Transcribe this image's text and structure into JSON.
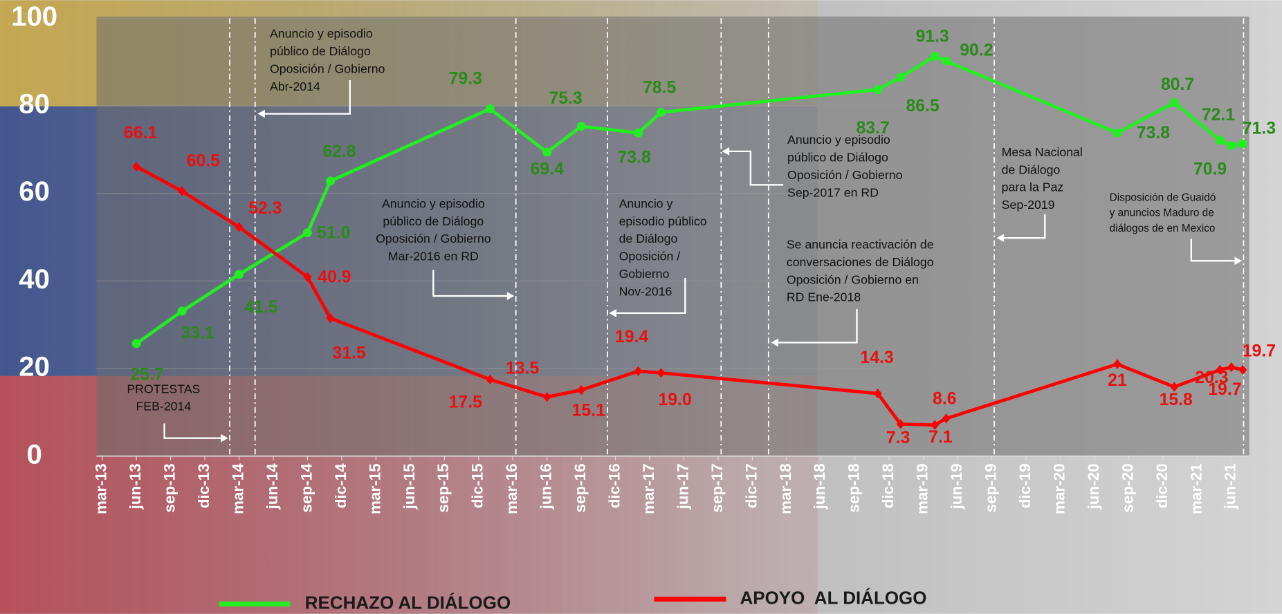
{
  "chart_data": {
    "type": "line",
    "xlim": [
      "2013-03",
      "2021-07"
    ],
    "xticks": [
      {
        "value": "2013-03",
        "label": "mar-13"
      },
      {
        "value": "2013-06",
        "label": "jun-13"
      },
      {
        "value": "2013-09",
        "label": "sep-13"
      },
      {
        "value": "2013-12",
        "label": "dic-13"
      },
      {
        "value": "2014-03",
        "label": "mar-14"
      },
      {
        "value": "2014-06",
        "label": "jun-14"
      },
      {
        "value": "2014-09",
        "label": "sep-14"
      },
      {
        "value": "2014-12",
        "label": "dic-14"
      },
      {
        "value": "2015-03",
        "label": "mar-15"
      },
      {
        "value": "2015-06",
        "label": "jun-15"
      },
      {
        "value": "2015-09",
        "label": "sep-15"
      },
      {
        "value": "2015-12",
        "label": "dic-15"
      },
      {
        "value": "2016-03",
        "label": "mar-16"
      },
      {
        "value": "2016-06",
        "label": "jun-16"
      },
      {
        "value": "2016-09",
        "label": "sep-16"
      },
      {
        "value": "2016-12",
        "label": "dic-16"
      },
      {
        "value": "2017-03",
        "label": "mar-17"
      },
      {
        "value": "2017-06",
        "label": "jun-17"
      },
      {
        "value": "2017-09",
        "label": "sep-17"
      },
      {
        "value": "2017-12",
        "label": "dic-17"
      },
      {
        "value": "2018-03",
        "label": "mar-18"
      },
      {
        "value": "2018-06",
        "label": "jun-18"
      },
      {
        "value": "2018-09",
        "label": "sep-18"
      },
      {
        "value": "2018-12",
        "label": "dic-18"
      },
      {
        "value": "2019-03",
        "label": "mar-19"
      },
      {
        "value": "2019-06",
        "label": "jun-19"
      },
      {
        "value": "2019-09",
        "label": "sep-19"
      },
      {
        "value": "2019-12",
        "label": "dic-19"
      },
      {
        "value": "2020-03",
        "label": "mar-20"
      },
      {
        "value": "2020-06",
        "label": "jun-20"
      },
      {
        "value": "2020-09",
        "label": "sep-20"
      },
      {
        "value": "2020-12",
        "label": "dic-20"
      },
      {
        "value": "2021-03",
        "label": "mar-21"
      },
      {
        "value": "2021-06",
        "label": "jun-21"
      }
    ],
    "ylim": [
      0,
      100
    ],
    "yticks": [
      0,
      20,
      40,
      60,
      80,
      100
    ],
    "grid": true,
    "x": [
      "2013-06",
      "2013-10",
      "2014-03",
      "2014-09",
      "2014-11",
      "2016-01",
      "2016-06",
      "2016-09",
      "2017-02",
      "2017-04",
      "2018-11",
      "2019-01",
      "2019-04",
      "2019-05",
      "2020-08",
      "2021-01",
      "2021-05",
      "2021-06",
      "2021-07"
    ],
    "series": [
      {
        "name": "RECHAZO AL DIÁLOGO",
        "color": "#22ee22",
        "label_color": "#2a8a1a",
        "marker": "circle",
        "values": [
          25.7,
          33.1,
          41.5,
          51.0,
          62.8,
          79.3,
          69.4,
          75.3,
          73.8,
          78.5,
          83.7,
          86.5,
          91.3,
          90.2,
          73.8,
          80.7,
          72.1,
          70.9,
          71.3
        ],
        "value_labels": [
          "25.7",
          "33.1",
          "41.5",
          "51.0",
          "62.8",
          "79.3",
          "69.4",
          "75.3",
          "73.8",
          "78.5",
          "83.7",
          "86.5",
          "91.3",
          "90.2",
          "73.8",
          "80.7",
          "72.1",
          "70.9",
          "71.3"
        ]
      },
      {
        "name": "APOYO  AL DIÁLOGO",
        "color": "#ff0000",
        "label_color": "#e81010",
        "marker": "diamond",
        "values": [
          66.1,
          60.5,
          52.3,
          40.9,
          31.5,
          17.5,
          13.5,
          15.1,
          19.4,
          19.0,
          14.3,
          7.3,
          7.1,
          8.6,
          21,
          15.8,
          19.7,
          20.3,
          19.7
        ],
        "value_labels": [
          "66.1",
          "60.5",
          "52.3",
          "40.9",
          "31.5",
          "17.5",
          "13.5",
          "15.1",
          "19.4",
          "19.0",
          "14.3",
          "7.3",
          "7.1",
          "8.6",
          "21",
          "15.8",
          "19.7",
          "20.3",
          "19.7"
        ]
      }
    ],
    "annotations": [
      {
        "lines": [
          "PROTESTAS",
          "FEB-2014"
        ]
      },
      {
        "lines": [
          "Anuncio y episodio",
          "público de Diálogo",
          "Oposición / Gobierno",
          "Abr-2014"
        ]
      },
      {
        "lines": [
          "Anuncio y episodio",
          "público de Diálogo",
          "Oposición / Gobierno",
          "Mar-2016  en RD"
        ]
      },
      {
        "lines": [
          "Anuncio y",
          "episodio público",
          "de Diálogo",
          "Oposición /",
          "Gobierno",
          "Nov-2016"
        ]
      },
      {
        "lines": [
          "Anuncio y episodio",
          "público de Diálogo",
          "Oposición / Gobierno",
          "Sep-2017 en RD"
        ]
      },
      {
        "lines": [
          "Se anuncia reactivación de",
          "conversaciones de Diálogo",
          "Oposición / Gobierno en",
          "RD Ene-2018"
        ]
      },
      {
        "lines": [
          "Mesa Nacional",
          "de Diálogo",
          "para la Paz",
          "Sep-2019"
        ]
      },
      {
        "lines": [
          "Disposición de Guaidó",
          "y anuncios Maduro de",
          "diálogos de en Mexico"
        ]
      }
    ]
  }
}
